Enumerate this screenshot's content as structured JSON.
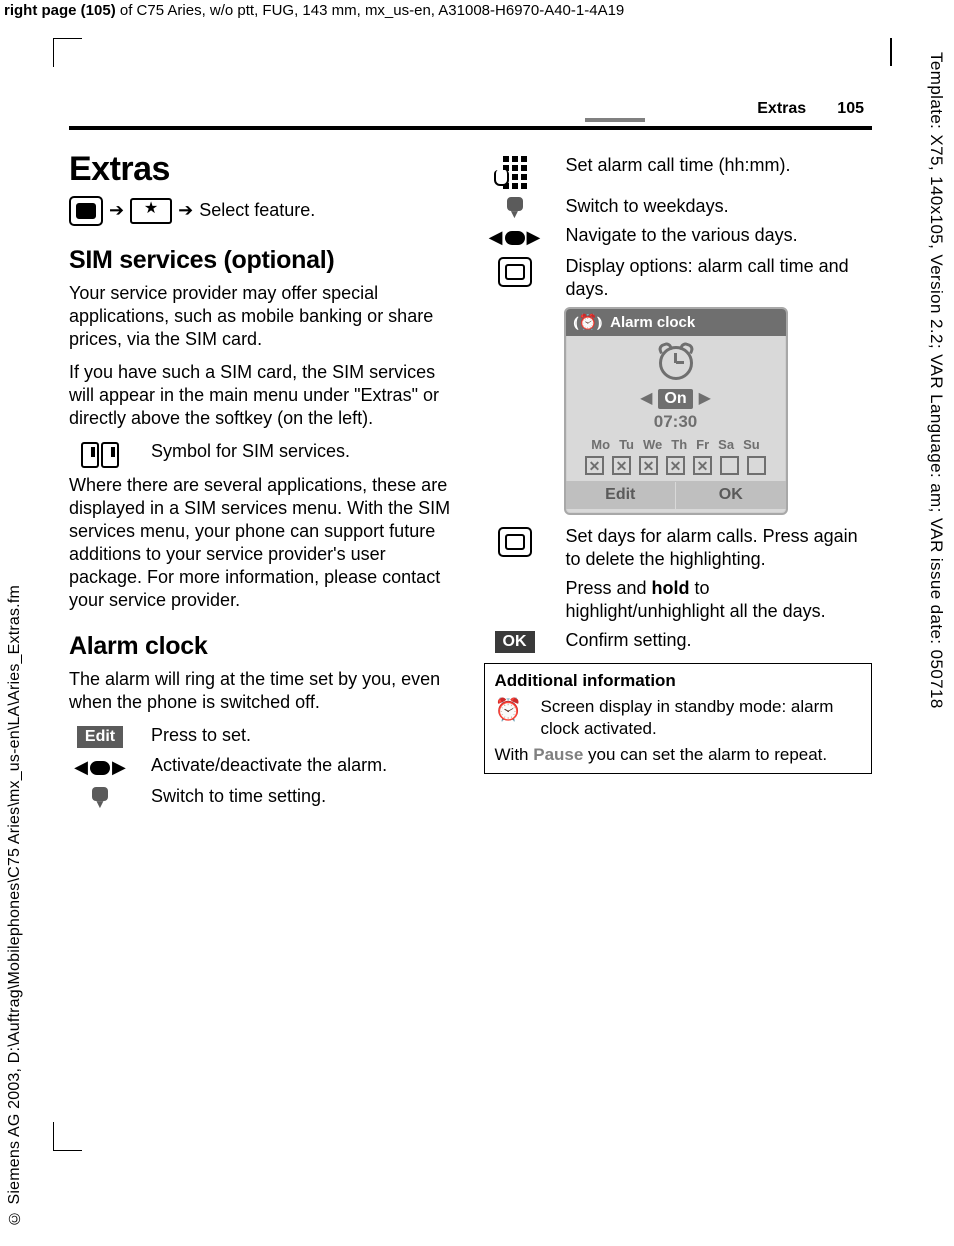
{
  "top_meta": {
    "prefix_bold": "right page (105)",
    "rest": " of C75 Aries, w/o ptt, FUG, 143 mm, mx_us-en, A31008-H6970-A40-1-4A19"
  },
  "vert_right": "Template: X75, 140x105, Version 2.2; VAR Language: am; VAR issue date: 050718",
  "vert_left": "© Siemens AG 2003, D:\\Auftrag\\Mobilephones\\C75 Aries\\mx_us-en\\LA\\Aries_Extras.fm",
  "running": {
    "section": "Extras",
    "page": "105"
  },
  "left": {
    "h1": "Extras",
    "nav_text": "Select feature.",
    "star_glyph": "★",
    "h2a": "SIM services (optional)",
    "p1": "Your service provider may offer special applications, such as mobile banking or share prices, via the SIM card.",
    "p2": "If you have such a SIM card, the SIM services will appear in the main menu under \"Extras\" or directly above the softkey (on the left).",
    "sim_symbol_text": "Symbol for SIM services.",
    "p3": "Where there are several applications, these are displayed in a SIM services menu. With the SIM services menu, your phone can support future additions to your service provider's user package. For more information, please contact your service provider.",
    "h2b": "Alarm clock",
    "p4": "The alarm will ring at the time set by you, even when the phone is switched off.",
    "edit_label": "Edit",
    "edit_text": "Press to set.",
    "lr_text": "Activate/deactivate the alarm.",
    "down_text": "Switch to time setting."
  },
  "right": {
    "r1": "Set alarm call time (hh:mm).",
    "r2": "Switch to weekdays.",
    "r3": "Navigate to the various days.",
    "r4": "Display options: alarm call time and days.",
    "phone": {
      "title": "Alarm clock",
      "on": "On",
      "time": "07:30",
      "days": [
        "Mo",
        "Tu",
        "We",
        "Th",
        "Fr",
        "Sa",
        "Su"
      ],
      "checks": [
        true,
        true,
        true,
        true,
        true,
        false,
        false
      ],
      "soft_left": "Edit",
      "soft_right": "OK"
    },
    "r5": "Set days for alarm calls. Press again to delete the highlighting.",
    "r6a": "Press and ",
    "r6b": "hold",
    "r6c": " to highlight/unhighlight all the days.",
    "ok_label": "OK",
    "r7": "Confirm setting.",
    "info": {
      "head": "Additional information",
      "line1": "Screen display in standby mode: alarm clock activated.",
      "line2a": "With ",
      "line2b": "Pause",
      "line2c": " you can set the alarm to repeat."
    }
  }
}
